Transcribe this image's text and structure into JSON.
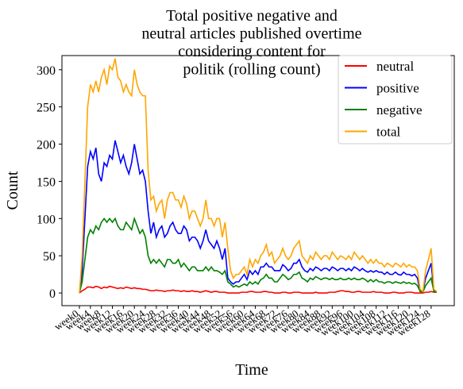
{
  "chart_data": {
    "type": "line",
    "title": [
      "Total positive negative and",
      "neutral articles published overtime",
      "considering content for",
      "politik (rolling count)"
    ],
    "x_label": "Time",
    "y_label": "Count",
    "categories": [
      "week0",
      null,
      null,
      null,
      "week4",
      null,
      null,
      null,
      "week8",
      null,
      null,
      null,
      "week12",
      null,
      null,
      null,
      "week16",
      null,
      null,
      null,
      "week20",
      null,
      null,
      null,
      "week24",
      null,
      null,
      null,
      "week28",
      null,
      null,
      null,
      "week32",
      null,
      null,
      null,
      "week36",
      null,
      null,
      null,
      "week40",
      null,
      null,
      null,
      "week44",
      null,
      null,
      null,
      "week48",
      null,
      null,
      null,
      "week52",
      null,
      null,
      null,
      "week56",
      null,
      null,
      null,
      "week60",
      null,
      null,
      null,
      "week64",
      null,
      null,
      null,
      "week68",
      null,
      null,
      null,
      "week72",
      null,
      null,
      null,
      "week76",
      null,
      null,
      null,
      "week80",
      null,
      null,
      null,
      "week84",
      null,
      null,
      null,
      "week88",
      null,
      null,
      null,
      "week92",
      null,
      null,
      null,
      "week96",
      null,
      null,
      null,
      "week100",
      null,
      null,
      null,
      "week104",
      null,
      null,
      null,
      "week108",
      null,
      null,
      null,
      "week112",
      null,
      null,
      null,
      "week116",
      null,
      null,
      null,
      "week120",
      null,
      null,
      null,
      "week124",
      null,
      null,
      null,
      "week128",
      null,
      null
    ],
    "series": [
      {
        "name": "neutral",
        "color": "#ff0000",
        "values": [
          0,
          3,
          5,
          8,
          8,
          7,
          9,
          8,
          6,
          8,
          7,
          9,
          8,
          7,
          6,
          7,
          6,
          8,
          7,
          6,
          7,
          6,
          6,
          5,
          5,
          4,
          3,
          3,
          4,
          3,
          3,
          2,
          3,
          3,
          4,
          3,
          3,
          2,
          3,
          2,
          2,
          3,
          2,
          2,
          1,
          2,
          3,
          2,
          1,
          2,
          2,
          1,
          1,
          1,
          0,
          0,
          0,
          0,
          0,
          1,
          1,
          1,
          2,
          2,
          1,
          1,
          1,
          2,
          2,
          1,
          1,
          0,
          0,
          0,
          1,
          1,
          0,
          0,
          1,
          1,
          1,
          0,
          0,
          0,
          0,
          0,
          1,
          0,
          0,
          0,
          0,
          1,
          1,
          1,
          2,
          3,
          3,
          2,
          2,
          1,
          1,
          2,
          2,
          1,
          1,
          1,
          1,
          2,
          1,
          1,
          1,
          0,
          0,
          0,
          1,
          1,
          0,
          0,
          0,
          1,
          1,
          1,
          0,
          0,
          0,
          0,
          1,
          1,
          2,
          1,
          1
        ]
      },
      {
        "name": "positive",
        "color": "#0000ff",
        "values": [
          0,
          30,
          100,
          170,
          190,
          180,
          195,
          160,
          150,
          175,
          170,
          185,
          180,
          205,
          190,
          175,
          185,
          170,
          160,
          175,
          200,
          180,
          160,
          165,
          150,
          110,
          80,
          95,
          75,
          85,
          90,
          75,
          80,
          90,
          95,
          85,
          80,
          80,
          90,
          85,
          70,
          75,
          75,
          70,
          60,
          70,
          85,
          70,
          65,
          60,
          70,
          60,
          45,
          60,
          20,
          15,
          12,
          15,
          15,
          20,
          25,
          18,
          30,
          25,
          30,
          25,
          35,
          35,
          40,
          35,
          35,
          30,
          30,
          30,
          38,
          35,
          30,
          33,
          40,
          40,
          45,
          35,
          30,
          28,
          33,
          30,
          35,
          33,
          30,
          33,
          33,
          30,
          35,
          33,
          30,
          33,
          33,
          30,
          33,
          30,
          35,
          33,
          30,
          33,
          30,
          28,
          30,
          28,
          30,
          28,
          28,
          25,
          28,
          25,
          25,
          28,
          25,
          24,
          28,
          25,
          25,
          23,
          25,
          20,
          3,
          2,
          20,
          30,
          40,
          3,
          2
        ]
      },
      {
        "name": "negative",
        "color": "#008000",
        "values": [
          0,
          15,
          45,
          75,
          85,
          80,
          90,
          85,
          95,
          100,
          95,
          100,
          95,
          100,
          90,
          85,
          85,
          95,
          90,
          85,
          100,
          90,
          80,
          85,
          75,
          50,
          40,
          45,
          40,
          45,
          40,
          35,
          45,
          45,
          40,
          40,
          45,
          35,
          40,
          35,
          30,
          35,
          35,
          30,
          30,
          30,
          35,
          30,
          35,
          30,
          30,
          28,
          25,
          30,
          15,
          12,
          8,
          10,
          8,
          10,
          12,
          10,
          15,
          12,
          15,
          12,
          18,
          20,
          25,
          20,
          20,
          15,
          15,
          20,
          25,
          22,
          18,
          20,
          25,
          25,
          28,
          20,
          18,
          15,
          20,
          18,
          22,
          20,
          18,
          20,
          20,
          18,
          20,
          18,
          18,
          20,
          18,
          18,
          20,
          18,
          20,
          18,
          18,
          20,
          18,
          15,
          18,
          15,
          18,
          15,
          15,
          13,
          15,
          15,
          13,
          15,
          14,
          13,
          15,
          13,
          14,
          12,
          13,
          10,
          2,
          1,
          10,
          15,
          20,
          2,
          1
        ]
      },
      {
        "name": "total",
        "color": "#ffa500",
        "values": [
          0,
          50,
          150,
          250,
          280,
          270,
          285,
          270,
          290,
          300,
          280,
          305,
          300,
          315,
          290,
          285,
          270,
          280,
          270,
          265,
          300,
          280,
          270,
          265,
          265,
          165,
          125,
          130,
          110,
          120,
          125,
          100,
          125,
          135,
          135,
          125,
          125,
          115,
          130,
          120,
          100,
          110,
          110,
          100,
          90,
          100,
          125,
          100,
          100,
          90,
          100,
          100,
          75,
          95,
          60,
          30,
          20,
          25,
          25,
          30,
          35,
          25,
          45,
          35,
          45,
          40,
          50,
          55,
          65,
          50,
          55,
          40,
          45,
          50,
          60,
          50,
          45,
          50,
          60,
          65,
          70,
          50,
          45,
          40,
          50,
          45,
          55,
          50,
          45,
          50,
          50,
          45,
          55,
          50,
          45,
          50,
          48,
          45,
          50,
          45,
          55,
          50,
          45,
          50,
          45,
          40,
          45,
          40,
          45,
          40,
          40,
          35,
          40,
          38,
          35,
          40,
          38,
          35,
          40,
          35,
          38,
          35,
          35,
          30,
          5,
          2,
          30,
          45,
          60,
          5,
          2
        ]
      }
    ],
    "ylim": [
      -17,
      319
    ],
    "yticks": [
      0,
      50,
      100,
      150,
      200,
      250,
      300
    ],
    "legend": "upper right"
  }
}
